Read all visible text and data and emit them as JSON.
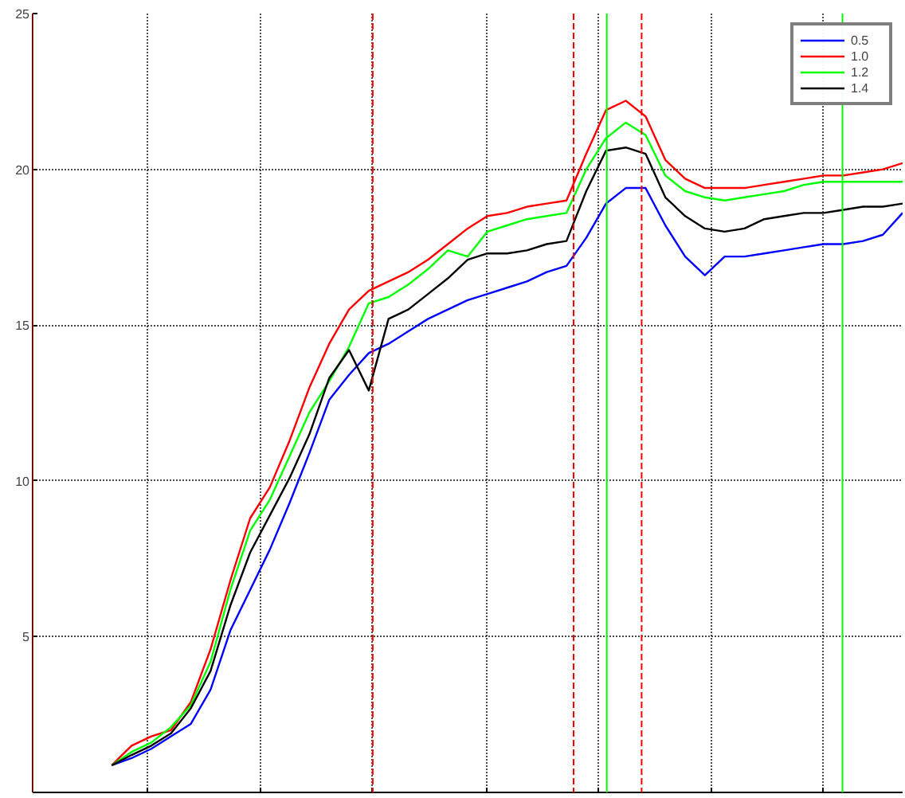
{
  "chart_data": {
    "type": "line",
    "ylim": [
      0,
      25
    ],
    "categories": [
      null,
      null,
      null,
      null,
      null,
      null,
      null,
      null,
      null,
      null,
      null,
      null,
      null,
      null,
      null,
      null,
      null,
      null,
      null,
      null,
      null,
      null,
      null,
      null,
      null,
      null,
      null,
      null,
      null,
      null,
      null,
      null,
      null,
      null,
      null,
      null,
      null,
      null,
      null,
      null,
      null,
      null,
      null,
      null,
      null
    ],
    "yticks": [
      5,
      10,
      15,
      20,
      25
    ],
    "tick_labels": "y",
    "grid": true,
    "legend": "top right",
    "line_style": "solid",
    "series": [
      {
        "name": "0.5",
        "color": "#0000ff",
        "values": [
          null,
          null,
          null,
          null,
          0.87,
          1.1,
          1.4,
          1.8,
          2.2,
          3.3,
          5.2,
          6.5,
          7.8,
          9.3,
          10.9,
          12.6,
          13.4,
          14.1,
          14.4,
          14.8,
          15.2,
          15.5,
          15.8,
          16.0,
          16.2,
          16.4,
          16.7,
          16.9,
          17.8,
          18.9,
          19.4,
          19.4,
          18.2,
          17.2,
          16.6,
          17.2,
          17.2,
          17.3,
          17.4,
          17.5,
          17.6,
          17.6,
          17.7,
          17.9,
          18.6
        ]
      },
      {
        "name": "1.0",
        "color": "#ff0000",
        "values": [
          null,
          null,
          null,
          null,
          0.87,
          1.5,
          1.8,
          2.0,
          2.9,
          4.6,
          6.8,
          8.8,
          9.8,
          11.3,
          13.0,
          14.4,
          15.5,
          16.1,
          16.4,
          16.7,
          17.1,
          17.6,
          18.1,
          18.5,
          18.6,
          18.8,
          18.9,
          19.0,
          20.5,
          21.9,
          22.2,
          21.7,
          20.3,
          19.7,
          19.4,
          19.4,
          19.4,
          19.5,
          19.6,
          19.7,
          19.8,
          19.8,
          19.9,
          20.0,
          20.2
        ]
      },
      {
        "name": "1.2",
        "color": "#00ff00",
        "values": [
          null,
          null,
          null,
          null,
          0.87,
          1.3,
          1.6,
          2.1,
          2.8,
          4.2,
          6.5,
          8.4,
          9.4,
          10.8,
          12.2,
          13.2,
          14.3,
          15.7,
          15.9,
          16.3,
          16.8,
          17.4,
          17.2,
          18.0,
          18.2,
          18.4,
          18.5,
          18.6,
          20.0,
          21.0,
          21.5,
          21.1,
          19.8,
          19.3,
          19.1,
          19.0,
          19.1,
          19.2,
          19.3,
          19.5,
          19.6,
          19.6,
          19.6,
          19.6,
          19.6
        ]
      },
      {
        "name": "1.4",
        "color": "#000000",
        "values": [
          null,
          null,
          null,
          null,
          0.87,
          1.2,
          1.5,
          1.9,
          2.7,
          3.9,
          6.0,
          7.7,
          8.9,
          10.1,
          11.5,
          13.3,
          14.2,
          12.9,
          15.2,
          15.5,
          16.0,
          16.5,
          17.1,
          17.3,
          17.3,
          17.4,
          17.6,
          17.7,
          19.3,
          20.6,
          20.7,
          20.5,
          19.1,
          18.5,
          18.1,
          18.0,
          18.1,
          18.4,
          18.5,
          18.6,
          18.6,
          18.7,
          18.8,
          18.8,
          18.9
        ]
      }
    ]
  }
}
